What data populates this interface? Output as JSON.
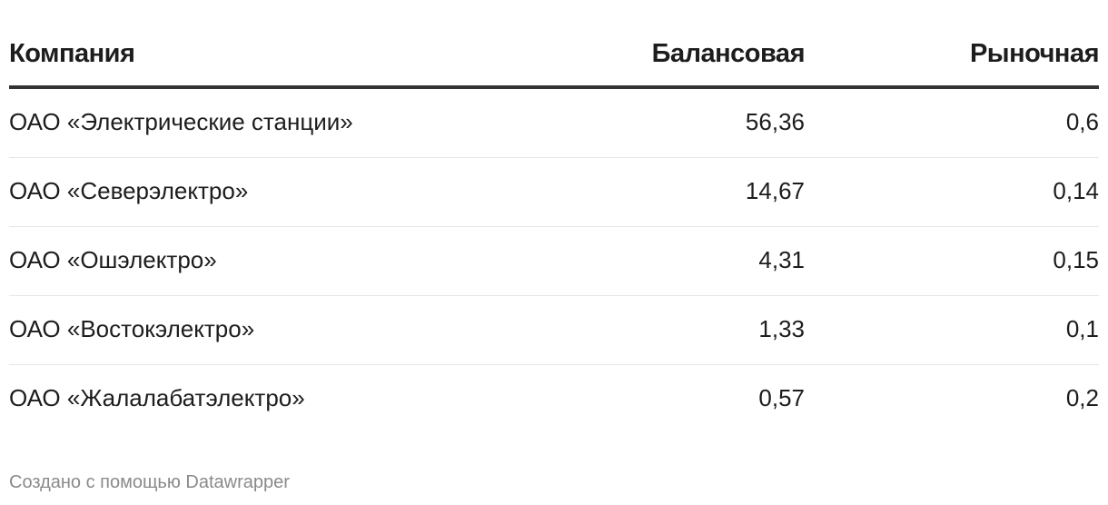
{
  "chart_data": {
    "type": "table",
    "columns": [
      "Компания",
      "Балансовая",
      "Рыночная"
    ],
    "rows": [
      {
        "company": "ОАО «Электрические станции»",
        "balance": "56,36",
        "market": "0,6"
      },
      {
        "company": "ОАО «Северэлектро»",
        "balance": "14,67",
        "market": "0,14"
      },
      {
        "company": "ОАО «Ошэлектро»",
        "balance": "4,31",
        "market": "0,15"
      },
      {
        "company": "ОАО «Востокэлектро»",
        "balance": "1,33",
        "market": "0,1"
      },
      {
        "company": "ОАО «Жалалабатэлектро»",
        "balance": "0,57",
        "market": "0,2"
      }
    ]
  },
  "footer": {
    "credit": "Создано с помощью Datawrapper"
  }
}
